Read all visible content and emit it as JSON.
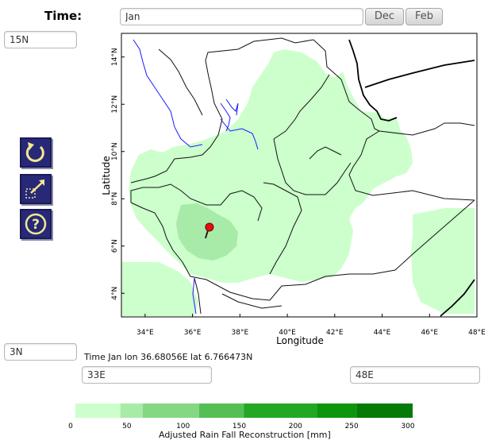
{
  "header": {
    "time_label": "Time:",
    "time_value": "Jan",
    "prev_button": "Dec",
    "next_button": "Feb"
  },
  "bounds": {
    "north": "15N",
    "south": "3N",
    "west": "33E",
    "east": "48E"
  },
  "tools": [
    {
      "name": "reset-icon"
    },
    {
      "name": "zoom-box-icon"
    },
    {
      "name": "help-icon"
    }
  ],
  "map": {
    "xlabel": "Longitude",
    "ylabel": "Latitude",
    "x_ticks": [
      "34°E",
      "36°E",
      "38°E",
      "40°E",
      "42°E",
      "44°E",
      "46°E",
      "48°E"
    ],
    "y_ticks": [
      "4°N",
      "6°N",
      "8°N",
      "10°N",
      "12°N",
      "14°N"
    ],
    "marker": {
      "lon": 36.68056,
      "lat": 6.766473,
      "color": "#e01010"
    }
  },
  "status_text": "Time Jan lon 36.68056E lat 6.766473N",
  "legend": {
    "title": "Adjusted Rain Fall Reconstruction [mm]",
    "ticks": [
      "0",
      "50",
      "100",
      "150",
      "200",
      "250",
      "300"
    ],
    "colors": [
      "#ccffcc",
      "#a8eba8",
      "#84d884",
      "#54c054",
      "#22a822",
      "#0c960c",
      "#057a05"
    ]
  }
}
